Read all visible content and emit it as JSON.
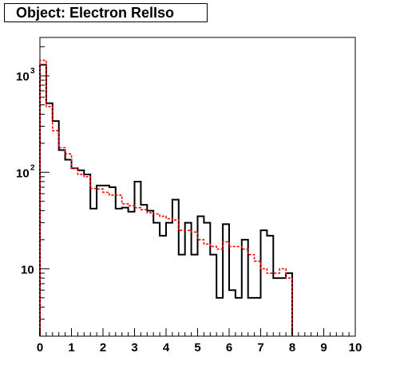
{
  "title": "Object: Electron RelIso",
  "chart_data": {
    "type": "histogram",
    "xlim": [
      0,
      10
    ],
    "ylim_log": [
      2.0,
      2500
    ],
    "y_scale": "log",
    "x_ticks": [
      "0",
      "1",
      "2",
      "3",
      "4",
      "5",
      "6",
      "7",
      "8",
      "9",
      "10"
    ],
    "y_ticks": [
      {
        "base": "10",
        "exp": "3",
        "value": 1000
      },
      {
        "base": "10",
        "exp": "2",
        "value": 100
      },
      {
        "base": "10",
        "exp": "",
        "value": 10
      }
    ],
    "bin_width": 0.2,
    "series": [
      {
        "color": "#000000",
        "style": "solid",
        "values": [
          1300,
          520,
          340,
          170,
          135,
          110,
          105,
          95,
          42,
          73,
          73,
          70,
          42,
          43,
          39,
          80,
          46,
          40,
          30,
          22,
          30,
          52,
          14,
          30,
          14,
          35,
          30,
          14,
          5,
          29,
          6,
          5,
          20,
          5,
          5,
          25,
          22,
          8,
          8,
          9
        ]
      },
      {
        "color": "#ff0000",
        "style": "dashed",
        "values": [
          1450,
          480,
          270,
          180,
          155,
          110,
          95,
          90,
          68,
          67,
          62,
          58,
          58,
          47,
          45,
          43,
          41,
          38,
          37,
          35,
          33,
          32,
          25,
          25,
          24,
          20,
          18,
          17,
          16,
          19,
          17,
          17,
          16,
          14,
          12,
          10,
          9,
          9,
          10,
          8
        ]
      }
    ]
  }
}
